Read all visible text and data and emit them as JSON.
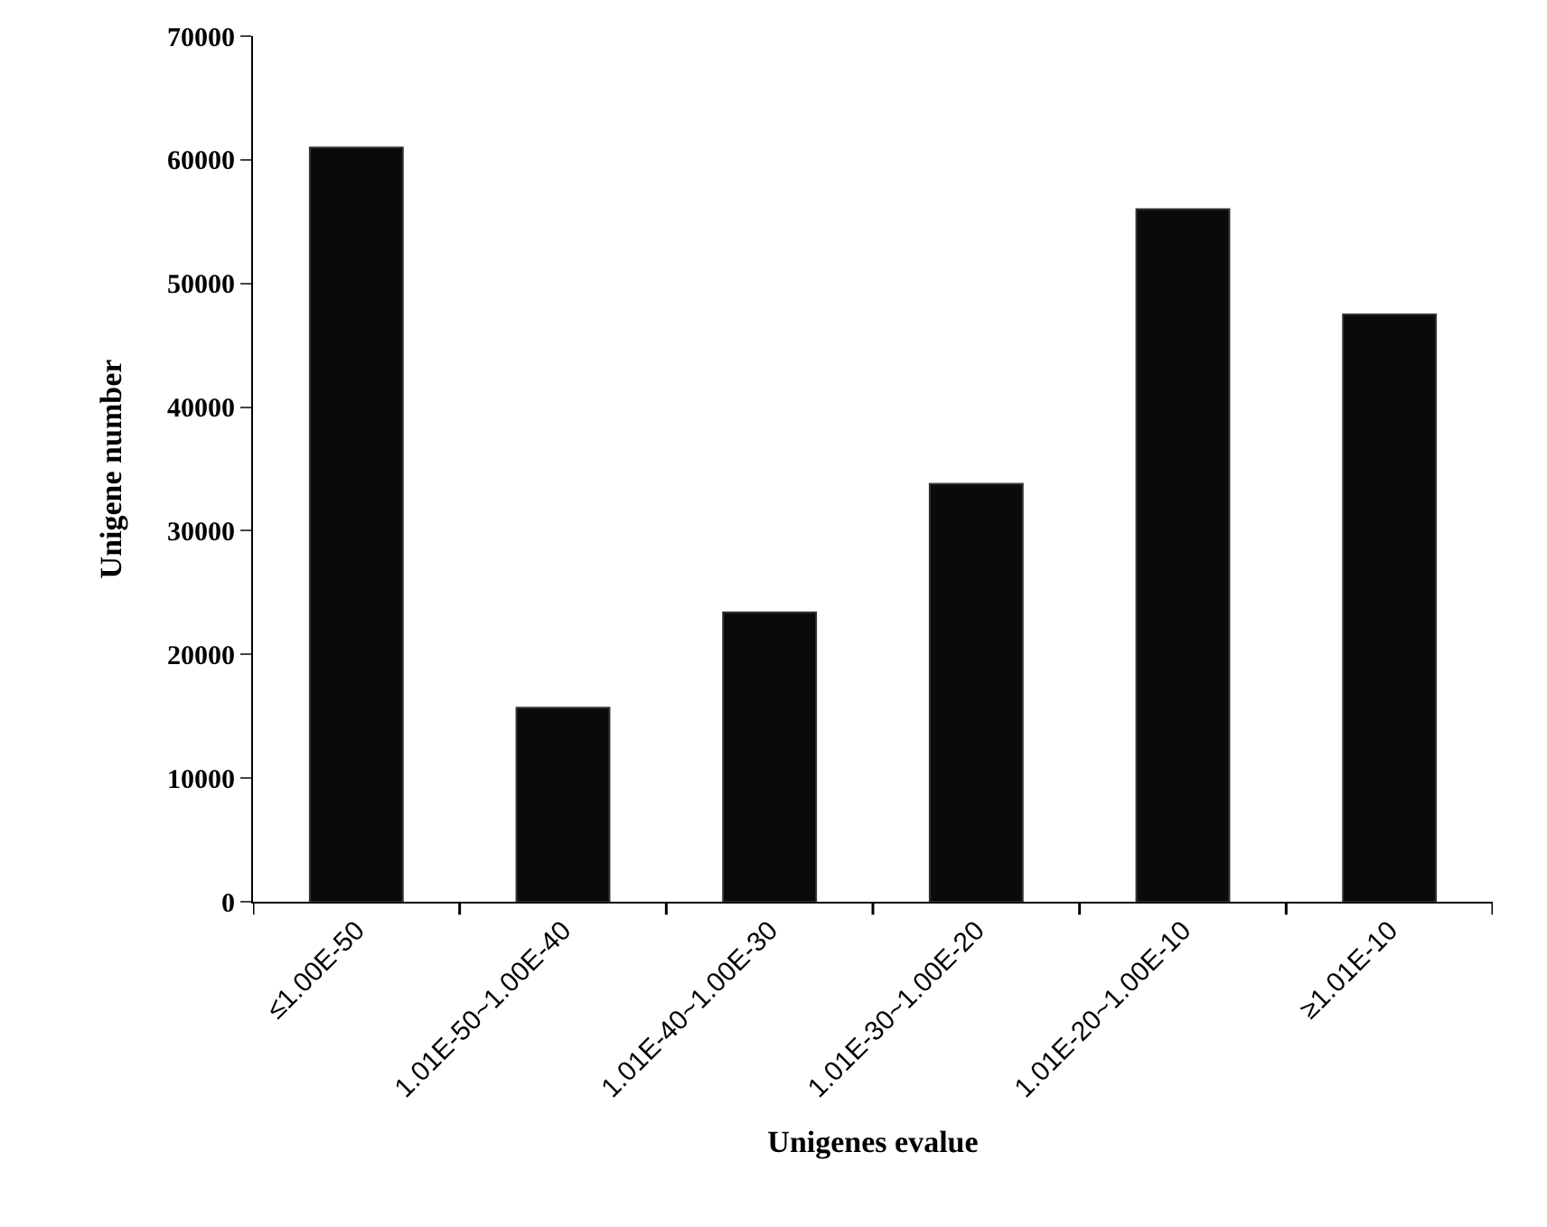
{
  "chart_data": {
    "type": "bar",
    "xlabel": "Unigenes evalue",
    "ylabel": "Unigene number",
    "categories": [
      "≤1.00E-50",
      "1.01E-50~1.00E-40",
      "1.01E-40~1.00E-30",
      "1.01E-30~1.00E-20",
      "1.01E-20~1.00E-10",
      "≥1.01E-10"
    ],
    "values": [
      61000,
      15700,
      23400,
      33800,
      56000,
      47500
    ],
    "color": "#0a0a0a",
    "ylim": [
      0,
      70000
    ],
    "yticks": [
      0,
      10000,
      20000,
      30000,
      40000,
      50000,
      60000,
      70000
    ]
  }
}
